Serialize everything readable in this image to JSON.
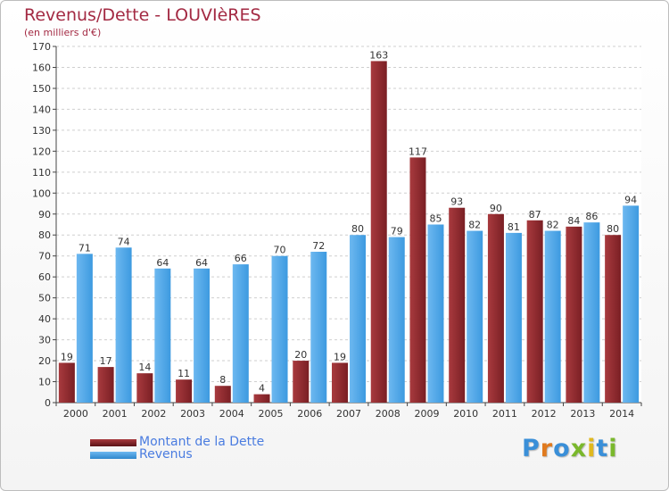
{
  "title": "Revenus/Dette - LOUVIèRES",
  "subtitle": "(en milliers d'€)",
  "logo": "Proxiti",
  "colors": {
    "dette": "#7a1f24",
    "dette_light": "#a83a3e",
    "revenus": "#3d9ae0",
    "revenus_light": "#6db8f0",
    "title": "#a32a43",
    "legend_text": "#4a7ce0"
  },
  "legend": [
    {
      "label": "Montant de la Dette",
      "color": "#7a1f24"
    },
    {
      "label": "Revenus",
      "color": "#3d9ae0"
    }
  ],
  "chart_data": {
    "type": "bar",
    "title": "Revenus/Dette - LOUVIèRES",
    "subtitle": "(en milliers d'€)",
    "categories": [
      "2000",
      "2001",
      "2002",
      "2003",
      "2004",
      "2005",
      "2006",
      "2007",
      "2008",
      "2009",
      "2010",
      "2011",
      "2012",
      "2013",
      "2014"
    ],
    "series": [
      {
        "name": "Montant de la Dette",
        "values": [
          19,
          17,
          14,
          11,
          8,
          4,
          20,
          19,
          163,
          117,
          93,
          90,
          87,
          84,
          80
        ]
      },
      {
        "name": "Revenus",
        "values": [
          71,
          74,
          64,
          64,
          66,
          70,
          72,
          80,
          79,
          85,
          82,
          81,
          82,
          86,
          94
        ]
      }
    ],
    "ylim": [
      0,
      170
    ],
    "yticks": [
      0,
      10,
      20,
      30,
      40,
      50,
      60,
      70,
      80,
      90,
      100,
      110,
      120,
      130,
      140,
      150,
      160,
      170
    ],
    "grid": true,
    "legend_position": "bottom-left"
  }
}
